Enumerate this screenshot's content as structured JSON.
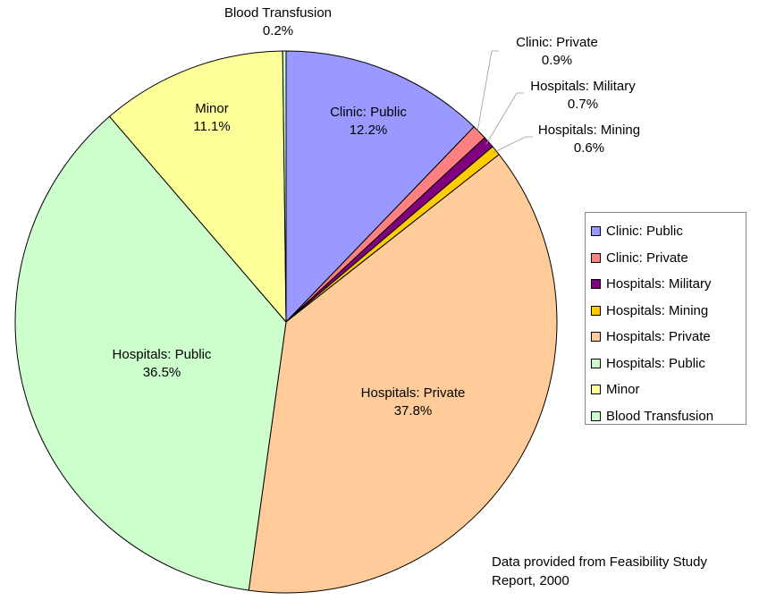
{
  "chart_data": {
    "type": "pie",
    "slices": [
      {
        "label": "Clinic: Public",
        "value": 12.2,
        "value_label": "12.2%",
        "color": "#9999ff"
      },
      {
        "label": "Clinic: Private",
        "value": 0.9,
        "value_label": "0.9%",
        "color": "#ff8080"
      },
      {
        "label": "Hospitals: Military",
        "value": 0.7,
        "value_label": "0.7%",
        "color": "#800080"
      },
      {
        "label": "Hospitals: Mining",
        "value": 0.6,
        "value_label": "0.6%",
        "color": "#ffcc00"
      },
      {
        "label": "Hospitals: Private",
        "value": 37.8,
        "value_label": "37.8%",
        "color": "#ffcc99"
      },
      {
        "label": "Hospitals: Public",
        "value": 36.5,
        "value_label": "36.5%",
        "color": "#ccffcc"
      },
      {
        "label": "Minor",
        "value": 11.1,
        "value_label": "11.1%",
        "color": "#ffff99"
      },
      {
        "label": "Blood Transfusion",
        "value": 0.2,
        "value_label": "0.2%",
        "color": "#ccffcc"
      }
    ],
    "legend_position": "right",
    "note": "Data provided from Feasibility Study Report, 2000"
  }
}
